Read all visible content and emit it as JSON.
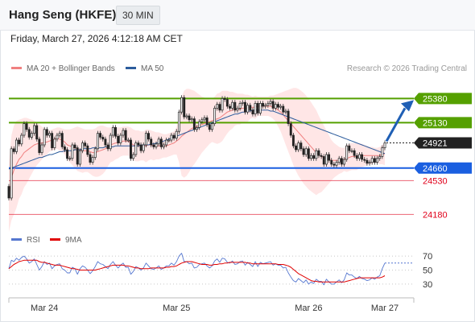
{
  "header": {
    "title": "Hang Seng (HKFE)",
    "interval": "30 MIN",
    "timestamp": "Friday, March 27, 2026 4:12:18 AM CET"
  },
  "legend": {
    "ma20": "MA 20 + Bollinger Bands",
    "ma50": "MA 50",
    "rsi": "RSI",
    "rsi_ma": "9MA",
    "copyright": "Research © 2026 Trading Central"
  },
  "colors": {
    "ma20": "#f08080",
    "ma50": "#2c5c9c",
    "bands": "#ffe2e2",
    "resistance": "#55a000",
    "support": "#1a5fe0",
    "support_secondary": "#e0001a",
    "current": "#222222",
    "rsi": "#5577d0",
    "rsi_ma": "#e00000",
    "arrow": "#1f5fb5"
  },
  "chart_data": [
    {
      "type": "candlestick",
      "x_labels": [
        "Mar 24",
        "Mar 25",
        "Mar 26",
        "Mar 27"
      ],
      "ylim": [
        24000,
        25600
      ],
      "current_price": 24921,
      "levels": [
        {
          "value": 25380,
          "label": "25380",
          "kind": "resistance",
          "style": "box"
        },
        {
          "value": 25130,
          "label": "25130",
          "kind": "resistance",
          "style": "box"
        },
        {
          "value": 24660,
          "label": "24660",
          "kind": "support",
          "style": "box"
        },
        {
          "value": 24530,
          "label": "24530",
          "kind": "support_secondary",
          "style": "text"
        },
        {
          "value": 24180,
          "label": "24180",
          "kind": "support_secondary",
          "style": "text"
        }
      ],
      "close": [
        24350,
        24860,
        24830,
        24950,
        24910,
        25000,
        25120,
        25060,
        24980,
        25020,
        25100,
        24960,
        24820,
        24900,
        25060,
        25000,
        25020,
        24870,
        24960,
        25000,
        25020,
        24880,
        24850,
        24760,
        24760,
        24900,
        24870,
        24700,
        24840,
        24920,
        24890,
        24800,
        24720,
        24770,
        24860,
        25020,
        24980,
        24960,
        24900,
        24860,
        25000,
        25080,
        24990,
        24920,
        25000,
        25050,
        24950,
        24950,
        24760,
        24800,
        24920,
        24900,
        24840,
        24900,
        25020,
        24960,
        24900,
        24880,
        24910,
        24960,
        24880,
        24900,
        24950,
        24950,
        25000,
        24970,
        25040,
        25240,
        25390,
        25190,
        25200,
        25160,
        25170,
        25060,
        25080,
        25140,
        25160,
        25180,
        25110,
        25060,
        25120,
        25280,
        25320,
        25260,
        25380,
        25370,
        25300,
        25280,
        25340,
        25260,
        25280,
        25330,
        25340,
        25240,
        25310,
        25260,
        25220,
        25330,
        25230,
        25330,
        25300,
        25310,
        25330,
        25350,
        25280,
        25320,
        25290,
        25300,
        25240,
        25250,
        25120,
        25000,
        24890,
        24850,
        24920,
        24860,
        24800,
        24860,
        24760,
        24790,
        24760,
        24840,
        24790,
        24780,
        24700,
        24800,
        24740,
        24700,
        24690,
        24720,
        24760,
        24700,
        24750,
        24890,
        24840,
        24840,
        24790,
        24760,
        24800,
        24750,
        24740,
        24710,
        24720,
        24760,
        24720,
        24760,
        24780,
        24870,
        24921
      ],
      "ma20": [
        24350,
        24560,
        24640,
        24700,
        24750,
        24780,
        24820,
        24840,
        24860,
        24880,
        24900,
        24910,
        24915,
        24920,
        24925,
        24930,
        24940,
        24950,
        24960,
        24970,
        24960,
        24950,
        24930,
        24900,
        24890,
        24880,
        24870,
        24860,
        24850,
        24840,
        24840,
        24840,
        24830,
        24820,
        24820,
        24830,
        24840,
        24850,
        24860,
        24880,
        24900,
        24910,
        24920,
        24920,
        24930,
        24940,
        24940,
        24940,
        24920,
        24900,
        24890,
        24890,
        24890,
        24890,
        24890,
        24900,
        24900,
        24890,
        24890,
        24890,
        24890,
        24890,
        24890,
        24900,
        24910,
        24920,
        24940,
        24960,
        24990,
        25010,
        25030,
        25050,
        25070,
        25080,
        25090,
        25100,
        25110,
        25120,
        25130,
        25140,
        25150,
        25160,
        25170,
        25180,
        25200,
        25220,
        25240,
        25250,
        25260,
        25270,
        25270,
        25270,
        25280,
        25280,
        25280,
        25290,
        25290,
        25290,
        25300,
        25300,
        25300,
        25300,
        25300,
        25300,
        25290,
        25280,
        25260,
        25240,
        25210,
        25180,
        25150,
        25120,
        25090,
        25060,
        25030,
        25000,
        24970,
        24940,
        24910,
        24880,
        24850,
        24820,
        24800,
        24780,
        24770,
        24760,
        24750,
        24740,
        24740,
        24740,
        24740,
        24740,
        24750,
        24760,
        24770,
        24780,
        24780,
        24780,
        24790,
        24790,
        24790,
        24790,
        24790,
        24790,
        24790,
        24790,
        24790,
        24800,
        24810
      ],
      "ma50": [
        24650,
        24660,
        24670,
        24680,
        24690,
        24700,
        24710,
        24720,
        24730,
        24740,
        24750,
        24760,
        24770,
        24770,
        24780,
        24790,
        24800,
        24800,
        24810,
        24820,
        24830,
        24830,
        24840,
        24840,
        24840,
        24840,
        24850,
        24850,
        24850,
        24860,
        24860,
        24860,
        24860,
        24870,
        24870,
        24870,
        24870,
        24870,
        24880,
        24880,
        24880,
        24880,
        24890,
        24890,
        24890,
        24890,
        24890,
        24890,
        24890,
        24890,
        24890,
        24890,
        24900,
        24900,
        24900,
        24900,
        24910,
        24910,
        24920,
        24920,
        24930,
        24940,
        24950,
        24960,
        24970,
        24980,
        24990,
        25000,
        25010,
        25020,
        25030,
        25040,
        25050,
        25060,
        25070,
        25080,
        25090,
        25100,
        25110,
        25120,
        25130,
        25140,
        25150,
        25160,
        25170,
        25180,
        25190,
        25200,
        25210,
        25220,
        25220,
        25230,
        25240,
        25240,
        25250,
        25250,
        25260,
        25260,
        25260,
        25260,
        25260,
        25260,
        25260,
        25250,
        25250,
        25240,
        25230,
        25220,
        25210,
        25200,
        25190,
        25180,
        25170,
        25160,
        25150,
        25140,
        25130,
        25120,
        25110,
        25100,
        25090,
        25080,
        25070,
        25060,
        25050,
        25040,
        25030,
        25020,
        25010,
        25000,
        24990,
        24980,
        24970,
        24960,
        24950,
        24940,
        24930,
        24920,
        24910,
        24900,
        24890,
        24880,
        24870,
        24860,
        24850,
        24840,
        24830,
        24820,
        24810
      ],
      "bb_upper": [
        24700,
        25000,
        25100,
        25150,
        25160,
        25170,
        25180,
        25180,
        25170,
        25160,
        25150,
        25130,
        25110,
        25090,
        25070,
        25060,
        25050,
        25060,
        25070,
        25080,
        25080,
        25070,
        25060,
        25060,
        25060,
        25070,
        25080,
        25090,
        25080,
        25070,
        25060,
        25060,
        25060,
        25060,
        25070,
        25090,
        25100,
        25100,
        25090,
        25080,
        25080,
        25090,
        25090,
        25080,
        25080,
        25090,
        25090,
        25090,
        25080,
        25060,
        25050,
        25050,
        25040,
        25040,
        25060,
        25060,
        25050,
        25040,
        25030,
        25030,
        25020,
        25010,
        25010,
        25020,
        25030,
        25040,
        25080,
        25200,
        25400,
        25460,
        25480,
        25480,
        25470,
        25460,
        25440,
        25420,
        25400,
        25390,
        25380,
        25370,
        25370,
        25400,
        25430,
        25440,
        25460,
        25460,
        25460,
        25450,
        25450,
        25440,
        25430,
        25430,
        25430,
        25420,
        25420,
        25410,
        25400,
        25410,
        25400,
        25400,
        25400,
        25400,
        25400,
        25410,
        25410,
        25420,
        25430,
        25440,
        25450,
        25460,
        25470,
        25480,
        25490,
        25490,
        25480,
        25460,
        25440,
        25410,
        25380,
        25340,
        25300,
        25260,
        25200,
        25150,
        25100,
        25050,
        25000,
        24950,
        24920,
        24900,
        24880,
        24870,
        24870,
        24900,
        24910,
        24920,
        24920,
        24920,
        24920,
        24910,
        24900,
        24890,
        24880,
        24880,
        24870,
        24870,
        24880,
        24900,
        24930
      ],
      "bb_lower": [
        24000,
        24120,
        24180,
        24250,
        24340,
        24390,
        24460,
        24500,
        24550,
        24600,
        24650,
        24690,
        24720,
        24750,
        24780,
        24800,
        24830,
        24840,
        24850,
        24860,
        24840,
        24830,
        24800,
        24740,
        24720,
        24690,
        24660,
        24630,
        24620,
        24610,
        24620,
        24620,
        24600,
        24580,
        24570,
        24570,
        24580,
        24600,
        24630,
        24680,
        24720,
        24730,
        24750,
        24760,
        24780,
        24790,
        24790,
        24790,
        24760,
        24740,
        24730,
        24730,
        24740,
        24740,
        24720,
        24740,
        24750,
        24740,
        24750,
        24750,
        24760,
        24770,
        24770,
        24780,
        24790,
        24800,
        24800,
        24720,
        24580,
        24560,
        24580,
        24620,
        24670,
        24700,
        24740,
        24780,
        24820,
        24850,
        24880,
        24910,
        24930,
        24920,
        24910,
        24920,
        24940,
        24980,
        25020,
        25050,
        25070,
        25100,
        25110,
        25110,
        25130,
        25140,
        25140,
        25170,
        25180,
        25170,
        25200,
        25200,
        25200,
        25200,
        25200,
        25190,
        25170,
        25140,
        25090,
        25040,
        24970,
        24900,
        24830,
        24760,
        24690,
        24630,
        24580,
        24540,
        24500,
        24470,
        24440,
        24420,
        24400,
        24380,
        24400,
        24410,
        24440,
        24470,
        24500,
        24530,
        24560,
        24580,
        24600,
        24610,
        24630,
        24620,
        24630,
        24640,
        24640,
        24640,
        24660,
        24670,
        24680,
        24690,
        24700,
        24700,
        24710,
        24710,
        24700,
        24700,
        24690
      ]
    },
    {
      "type": "line",
      "name": "RSI",
      "x_labels": [
        "Mar 24",
        "Mar 25",
        "Mar 26",
        "Mar 27"
      ],
      "yticks": [
        30,
        50,
        70
      ],
      "ylim": [
        15,
        85
      ],
      "rsi": [
        52,
        64,
        62,
        67,
        64,
        68,
        70,
        66,
        60,
        62,
        66,
        58,
        50,
        55,
        62,
        58,
        60,
        52,
        56,
        58,
        59,
        52,
        50,
        46,
        46,
        54,
        52,
        44,
        52,
        56,
        54,
        50,
        45,
        49,
        55,
        62,
        59,
        58,
        55,
        52,
        58,
        62,
        57,
        53,
        57,
        60,
        54,
        54,
        44,
        48,
        55,
        53,
        50,
        53,
        60,
        56,
        52,
        51,
        53,
        56,
        51,
        53,
        56,
        56,
        60,
        57,
        62,
        70,
        74,
        62,
        62,
        59,
        60,
        53,
        54,
        58,
        59,
        60,
        56,
        53,
        56,
        63,
        66,
        61,
        67,
        66,
        61,
        60,
        63,
        58,
        59,
        62,
        63,
        57,
        61,
        58,
        55,
        62,
        55,
        61,
        59,
        60,
        61,
        62,
        57,
        59,
        57,
        57,
        53,
        54,
        46,
        40,
        35,
        33,
        38,
        35,
        32,
        36,
        30,
        33,
        31,
        37,
        34,
        34,
        29,
        37,
        33,
        30,
        30,
        33,
        36,
        32,
        36,
        46,
        43,
        43,
        40,
        38,
        41,
        38,
        37,
        35,
        36,
        39,
        37,
        40,
        42,
        52,
        60
      ],
      "ma9": [
        52,
        55,
        58,
        60,
        62,
        63,
        64,
        64,
        64,
        64,
        64,
        64,
        62,
        61,
        61,
        60,
        59,
        58,
        57,
        57,
        57,
        56,
        55,
        54,
        53,
        52,
        52,
        51,
        50,
        50,
        50,
        50,
        50,
        50,
        50,
        51,
        52,
        53,
        54,
        55,
        56,
        57,
        57,
        57,
        57,
        57,
        56,
        56,
        55,
        54,
        53,
        53,
        52,
        52,
        52,
        52,
        53,
        53,
        53,
        53,
        53,
        53,
        54,
        54,
        55,
        55,
        56,
        58,
        60,
        61,
        62,
        62,
        62,
        61,
        60,
        59,
        58,
        58,
        58,
        57,
        57,
        58,
        58,
        59,
        59,
        60,
        60,
        61,
        61,
        61,
        61,
        61,
        61,
        61,
        60,
        60,
        59,
        59,
        59,
        59,
        59,
        59,
        59,
        59,
        59,
        59,
        58,
        58,
        58,
        57,
        56,
        54,
        51,
        48,
        45,
        43,
        41,
        39,
        37,
        35,
        34,
        34,
        33,
        33,
        33,
        33,
        33,
        33,
        33,
        33,
        33,
        33,
        33,
        34,
        35,
        36,
        37,
        38,
        39,
        39,
        39,
        39,
        39,
        39,
        39,
        39,
        39,
        40,
        42
      ]
    }
  ]
}
